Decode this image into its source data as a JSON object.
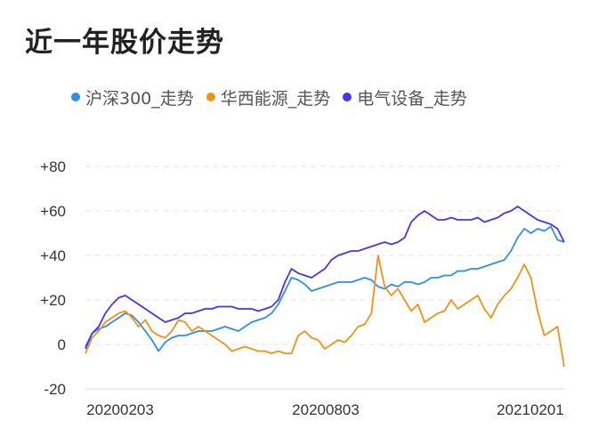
{
  "title": "近一年股价走势",
  "chart_data": {
    "type": "line",
    "title": "近一年股价走势",
    "xlabel": "",
    "ylabel": "",
    "ylim": [
      -20,
      80
    ],
    "grid": true,
    "legend_position": "top",
    "yticks": [
      "+80",
      "+60",
      "+40",
      "+20",
      "0",
      "-20"
    ],
    "ytick_values": [
      80,
      60,
      40,
      20,
      0,
      -20
    ],
    "xticks": [
      "20200203",
      "20200803",
      "20210201"
    ],
    "series": [
      {
        "name": "沪深300_走势",
        "color": "#2f8fe8",
        "values": [
          -1,
          5,
          7,
          8,
          10,
          12,
          14,
          13,
          10,
          6,
          2,
          -3,
          1,
          3,
          4,
          4,
          5,
          6,
          6,
          6,
          7,
          8,
          7,
          6,
          8,
          10,
          11,
          12,
          14,
          18,
          24,
          30,
          29,
          27,
          24,
          25,
          26,
          27,
          28,
          28,
          28,
          29,
          30,
          29,
          26,
          25,
          27,
          26,
          28,
          28,
          27,
          28,
          30,
          30,
          31,
          31,
          33,
          33,
          34,
          34,
          35,
          36,
          37,
          38,
          42,
          48,
          52,
          50,
          52,
          51,
          53,
          47,
          46
        ]
      },
      {
        "name": "华西能源_走势",
        "color": "#f09217",
        "values": [
          -4,
          3,
          6,
          10,
          12,
          14,
          15,
          12,
          8,
          11,
          6,
          4,
          3,
          6,
          11,
          10,
          6,
          8,
          6,
          4,
          2,
          0,
          -3,
          -2,
          -1,
          -2,
          -3,
          -3,
          -4,
          -3,
          -4,
          -4,
          4,
          6,
          3,
          2,
          -2,
          0,
          2,
          1,
          4,
          8,
          9,
          14,
          40,
          26,
          22,
          25,
          20,
          15,
          18,
          10,
          12,
          14,
          15,
          20,
          16,
          18,
          20,
          22,
          16,
          12,
          18,
          22,
          25,
          30,
          36,
          30,
          15,
          4,
          6,
          8,
          -10
        ]
      },
      {
        "name": "电气设备_走势",
        "color": "#4536e8",
        "values": [
          -2,
          5,
          8,
          14,
          18,
          21,
          22,
          20,
          18,
          16,
          14,
          12,
          10,
          11,
          12,
          14,
          14,
          15,
          16,
          16,
          17,
          17,
          17,
          16,
          16,
          16,
          15,
          16,
          17,
          20,
          28,
          34,
          32,
          31,
          30,
          32,
          34,
          38,
          40,
          41,
          42,
          42,
          43,
          44,
          45,
          46,
          45,
          46,
          48,
          55,
          58,
          60,
          58,
          56,
          56,
          57,
          56,
          56,
          56,
          57,
          55,
          56,
          57,
          59,
          60,
          62,
          60,
          58,
          56,
          55,
          54,
          52,
          46
        ]
      }
    ]
  }
}
